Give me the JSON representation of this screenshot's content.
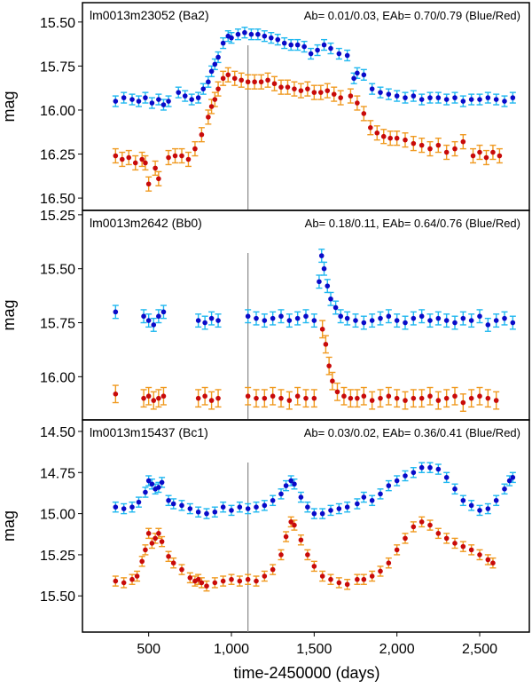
{
  "figure": {
    "xlabel": "time-2450000 (days)",
    "ylabel": "mag"
  },
  "chart_data": [
    {
      "type": "scatter",
      "title": "lm0013m23052 (Ba2)",
      "annotation": "Ab= 0.01/0.03, EAb= 0.70/0.79  (Blue/Red)",
      "ylabel": "mag",
      "xlim": [
        100,
        2800
      ],
      "ylim": [
        16.57,
        15.39
      ],
      "y_inverted": true,
      "yticks": [
        15.5,
        15.75,
        16.0,
        16.25,
        16.5
      ],
      "ytick_labels": [
        "15.50",
        "15.75",
        "16.00",
        "16.25",
        "16.50"
      ],
      "vline_x": 1100,
      "series": [
        {
          "name": "Blue",
          "color": "#0a0ac8",
          "errcolor": "#20b8f0",
          "err": 0.03,
          "x": [
            300,
            350,
            400,
            440,
            480,
            520,
            560,
            590,
            620,
            680,
            720,
            760,
            800,
            830,
            860,
            880,
            900,
            920,
            950,
            980,
            1000,
            1040,
            1080,
            1120,
            1160,
            1200,
            1240,
            1280,
            1320,
            1360,
            1400,
            1440,
            1480,
            1520,
            1560,
            1600,
            1650,
            1700,
            1740,
            1760,
            1800,
            1850,
            1900,
            1950,
            2000,
            2050,
            2100,
            2150,
            2200,
            2250,
            2300,
            2350,
            2400,
            2450,
            2500,
            2550,
            2600,
            2650,
            2700
          ],
          "y": [
            15.95,
            15.93,
            15.94,
            15.95,
            15.93,
            15.96,
            15.94,
            15.97,
            15.95,
            15.9,
            15.92,
            15.94,
            15.93,
            15.88,
            15.84,
            15.78,
            15.74,
            15.7,
            15.62,
            15.58,
            15.59,
            15.57,
            15.56,
            15.57,
            15.57,
            15.58,
            15.59,
            15.6,
            15.62,
            15.63,
            15.63,
            15.64,
            15.68,
            15.66,
            15.63,
            15.65,
            15.68,
            15.69,
            15.82,
            15.79,
            15.8,
            15.88,
            15.9,
            15.91,
            15.92,
            15.93,
            15.92,
            15.94,
            15.93,
            15.93,
            15.94,
            15.93,
            15.95,
            15.94,
            15.94,
            15.93,
            15.94,
            15.95,
            15.93
          ]
        },
        {
          "name": "Red",
          "color": "#c80a0a",
          "errcolor": "#f09a20",
          "err": 0.04,
          "x": [
            300,
            340,
            380,
            420,
            460,
            480,
            500,
            540,
            560,
            620,
            660,
            700,
            740,
            780,
            820,
            860,
            880,
            900,
            920,
            950,
            980,
            1020,
            1060,
            1100,
            1140,
            1180,
            1220,
            1260,
            1300,
            1340,
            1380,
            1420,
            1460,
            1500,
            1540,
            1580,
            1620,
            1660,
            1720,
            1760,
            1800,
            1840,
            1880,
            1920,
            1960,
            2000,
            2050,
            2100,
            2150,
            2200,
            2250,
            2300,
            2350,
            2400,
            2460,
            2500,
            2540,
            2580,
            2620
          ],
          "y": [
            16.26,
            16.28,
            16.27,
            16.3,
            16.28,
            16.3,
            16.42,
            16.33,
            16.39,
            16.27,
            16.26,
            16.26,
            16.28,
            16.22,
            16.14,
            16.04,
            15.98,
            15.94,
            15.88,
            15.82,
            15.8,
            15.82,
            15.83,
            15.84,
            15.84,
            15.84,
            15.83,
            15.85,
            15.87,
            15.87,
            15.88,
            15.89,
            15.88,
            15.9,
            15.9,
            15.89,
            15.91,
            15.93,
            15.92,
            15.96,
            16.02,
            16.1,
            16.13,
            16.15,
            16.16,
            16.16,
            16.17,
            16.19,
            16.2,
            16.22,
            16.2,
            16.24,
            16.22,
            16.18,
            16.26,
            16.24,
            16.27,
            16.24,
            16.26
          ]
        }
      ]
    },
    {
      "type": "scatter",
      "title": "lm0013m2642 (Bb0)",
      "annotation": "Ab= 0.18/0.11, EAb= 0.64/0.76  (Blue/Red)",
      "ylabel": "mag",
      "xlim": [
        100,
        2800
      ],
      "ylim": [
        16.2,
        15.23
      ],
      "y_inverted": true,
      "yticks": [
        15.25,
        15.5,
        15.75,
        16.0
      ],
      "ytick_labels": [
        "15.25",
        "15.50",
        "15.75",
        "16.00"
      ],
      "vline_x": 1100,
      "series": [
        {
          "name": "Blue",
          "color": "#0a0ac8",
          "errcolor": "#20b8f0",
          "err": 0.03,
          "x": [
            300,
            470,
            500,
            530,
            560,
            590,
            800,
            840,
            880,
            920,
            1100,
            1150,
            1200,
            1250,
            1300,
            1350,
            1400,
            1450,
            1500,
            1530,
            1545,
            1560,
            1580,
            1600,
            1630,
            1660,
            1700,
            1750,
            1800,
            1850,
            1900,
            1950,
            2000,
            2050,
            2100,
            2150,
            2200,
            2250,
            2300,
            2350,
            2400,
            2450,
            2500,
            2550,
            2600,
            2650,
            2700
          ],
          "y": [
            15.7,
            15.72,
            15.74,
            15.76,
            15.72,
            15.7,
            15.74,
            15.75,
            15.73,
            15.74,
            15.72,
            15.73,
            15.74,
            15.73,
            15.72,
            15.74,
            15.73,
            15.72,
            15.74,
            15.56,
            15.44,
            15.5,
            15.58,
            15.64,
            15.68,
            15.72,
            15.73,
            15.74,
            15.75,
            15.74,
            15.73,
            15.72,
            15.74,
            15.75,
            15.73,
            15.72,
            15.74,
            15.73,
            15.74,
            15.75,
            15.73,
            15.74,
            15.72,
            15.76,
            15.74,
            15.73,
            15.75
          ]
        },
        {
          "name": "Red",
          "color": "#c80a0a",
          "errcolor": "#f09a20",
          "err": 0.04,
          "x": [
            300,
            470,
            500,
            530,
            560,
            590,
            800,
            840,
            880,
            920,
            1100,
            1150,
            1200,
            1250,
            1300,
            1350,
            1400,
            1450,
            1500,
            1550,
            1570,
            1590,
            1610,
            1640,
            1680,
            1720,
            1760,
            1800,
            1850,
            1900,
            1950,
            2000,
            2050,
            2100,
            2150,
            2200,
            2250,
            2300,
            2350,
            2400,
            2450,
            2500,
            2550,
            2600
          ],
          "y": [
            16.08,
            16.1,
            16.09,
            16.11,
            16.1,
            16.09,
            16.1,
            16.09,
            16.11,
            16.1,
            16.09,
            16.1,
            16.1,
            16.09,
            16.1,
            16.11,
            16.09,
            16.1,
            16.1,
            15.78,
            15.85,
            15.95,
            16.02,
            16.07,
            16.09,
            16.1,
            16.1,
            16.09,
            16.11,
            16.1,
            16.09,
            16.1,
            16.11,
            16.1,
            16.1,
            16.09,
            16.11,
            16.1,
            16.09,
            16.12,
            16.1,
            16.09,
            16.1,
            16.11
          ]
        }
      ]
    },
    {
      "type": "scatter",
      "title": "lm0013m15437 (Bc1)",
      "annotation": "Ab= 0.03/0.02, EAb= 0.36/0.41  (Blue/Red)",
      "ylabel": "mag",
      "xlim": [
        100,
        2800
      ],
      "ylim": [
        15.72,
        14.43
      ],
      "y_inverted": true,
      "yticks": [
        14.5,
        14.75,
        15.0,
        15.25,
        15.5
      ],
      "ytick_labels": [
        "14.50",
        "14.75",
        "15.00",
        "15.25",
        "15.50"
      ],
      "vline_x": 1100,
      "series": [
        {
          "name": "Blue",
          "color": "#0a0ac8",
          "errcolor": "#20b8f0",
          "err": 0.03,
          "x": [
            300,
            350,
            400,
            440,
            480,
            500,
            520,
            540,
            560,
            580,
            620,
            650,
            700,
            750,
            800,
            850,
            900,
            950,
            1000,
            1050,
            1100,
            1150,
            1200,
            1250,
            1300,
            1330,
            1360,
            1380,
            1420,
            1460,
            1500,
            1550,
            1600,
            1650,
            1700,
            1760,
            1800,
            1850,
            1900,
            1950,
            2000,
            2050,
            2100,
            2150,
            2200,
            2250,
            2300,
            2350,
            2400,
            2450,
            2500,
            2550,
            2600,
            2650,
            2680,
            2700
          ],
          "y": [
            14.96,
            14.97,
            14.96,
            14.93,
            14.87,
            14.8,
            14.82,
            14.85,
            14.84,
            14.81,
            14.92,
            14.94,
            14.95,
            14.97,
            14.99,
            15.0,
            14.99,
            14.96,
            14.98,
            14.96,
            14.97,
            14.96,
            14.95,
            14.92,
            14.88,
            14.83,
            14.8,
            14.82,
            14.9,
            14.96,
            15.0,
            15.0,
            14.98,
            14.97,
            14.96,
            14.94,
            14.9,
            14.92,
            14.88,
            14.83,
            14.8,
            14.77,
            14.75,
            14.72,
            14.72,
            14.73,
            14.78,
            14.85,
            14.92,
            14.95,
            14.98,
            14.97,
            14.92,
            14.85,
            14.8,
            14.78
          ]
        },
        {
          "name": "Red",
          "color": "#c80a0a",
          "errcolor": "#f09a20",
          "err": 0.03,
          "x": [
            300,
            350,
            400,
            430,
            460,
            480,
            500,
            520,
            540,
            560,
            580,
            620,
            650,
            700,
            750,
            780,
            800,
            820,
            850,
            900,
            950,
            1000,
            1050,
            1100,
            1150,
            1200,
            1250,
            1300,
            1330,
            1360,
            1380,
            1420,
            1460,
            1500,
            1550,
            1600,
            1650,
            1700,
            1760,
            1800,
            1850,
            1900,
            1950,
            2000,
            2050,
            2100,
            2150,
            2200,
            2250,
            2300,
            2350,
            2400,
            2450,
            2500,
            2550,
            2580
          ],
          "y": [
            15.41,
            15.42,
            15.4,
            15.38,
            15.29,
            15.22,
            15.12,
            15.18,
            15.15,
            15.12,
            15.17,
            15.26,
            15.3,
            15.34,
            15.39,
            15.41,
            15.4,
            15.42,
            15.44,
            15.42,
            15.41,
            15.4,
            15.41,
            15.4,
            15.41,
            15.38,
            15.34,
            15.25,
            15.14,
            15.05,
            15.07,
            15.16,
            15.25,
            15.32,
            15.38,
            15.4,
            15.42,
            15.43,
            15.4,
            15.4,
            15.38,
            15.35,
            15.3,
            15.22,
            15.15,
            15.08,
            15.05,
            15.07,
            15.12,
            15.15,
            15.18,
            15.2,
            15.22,
            15.25,
            15.28,
            15.3
          ]
        }
      ]
    }
  ],
  "x_axis": {
    "ticks": [
      500,
      1000,
      1500,
      2000,
      2500
    ],
    "tick_labels": [
      "500",
      "1,000",
      "1,500",
      "2,000",
      "2,500"
    ]
  }
}
